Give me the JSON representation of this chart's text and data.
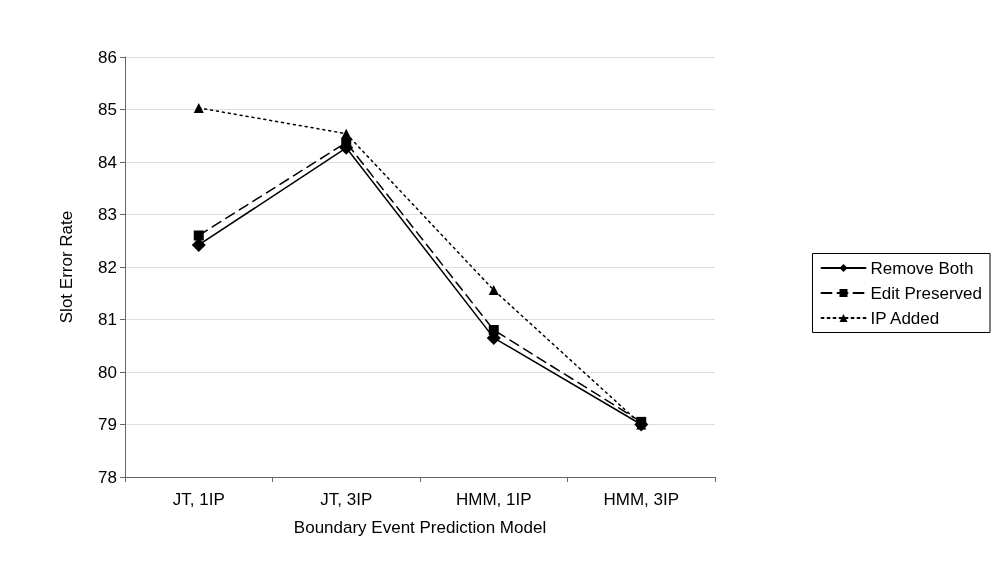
{
  "chart_data": {
    "type": "line",
    "xlabel": "Boundary Event Prediction Model",
    "ylabel": "Slot Error Rate",
    "categories": [
      "JT, 1IP",
      "JT, 3IP",
      "HMM, 1IP",
      "HMM, 3IP"
    ],
    "series": [
      {
        "name": "Remove Both",
        "color": "#000000",
        "marker": "diamond",
        "line_style": "solid",
        "values": [
          82.42,
          84.27,
          80.65,
          79.0
        ]
      },
      {
        "name": "Edit Preserved",
        "color": "#000000",
        "marker": "square",
        "line_style": "dashed",
        "values": [
          82.6,
          84.37,
          80.8,
          79.05
        ]
      },
      {
        "name": "IP Added",
        "color": "#000000",
        "marker": "triangle",
        "line_style": "dotted",
        "values": [
          85.03,
          84.54,
          81.56,
          79.0
        ]
      }
    ],
    "ylim": [
      78,
      86
    ],
    "yticks": [
      78,
      79,
      80,
      81,
      82,
      83,
      84,
      85,
      86
    ],
    "grid": "y",
    "legend": "right"
  }
}
